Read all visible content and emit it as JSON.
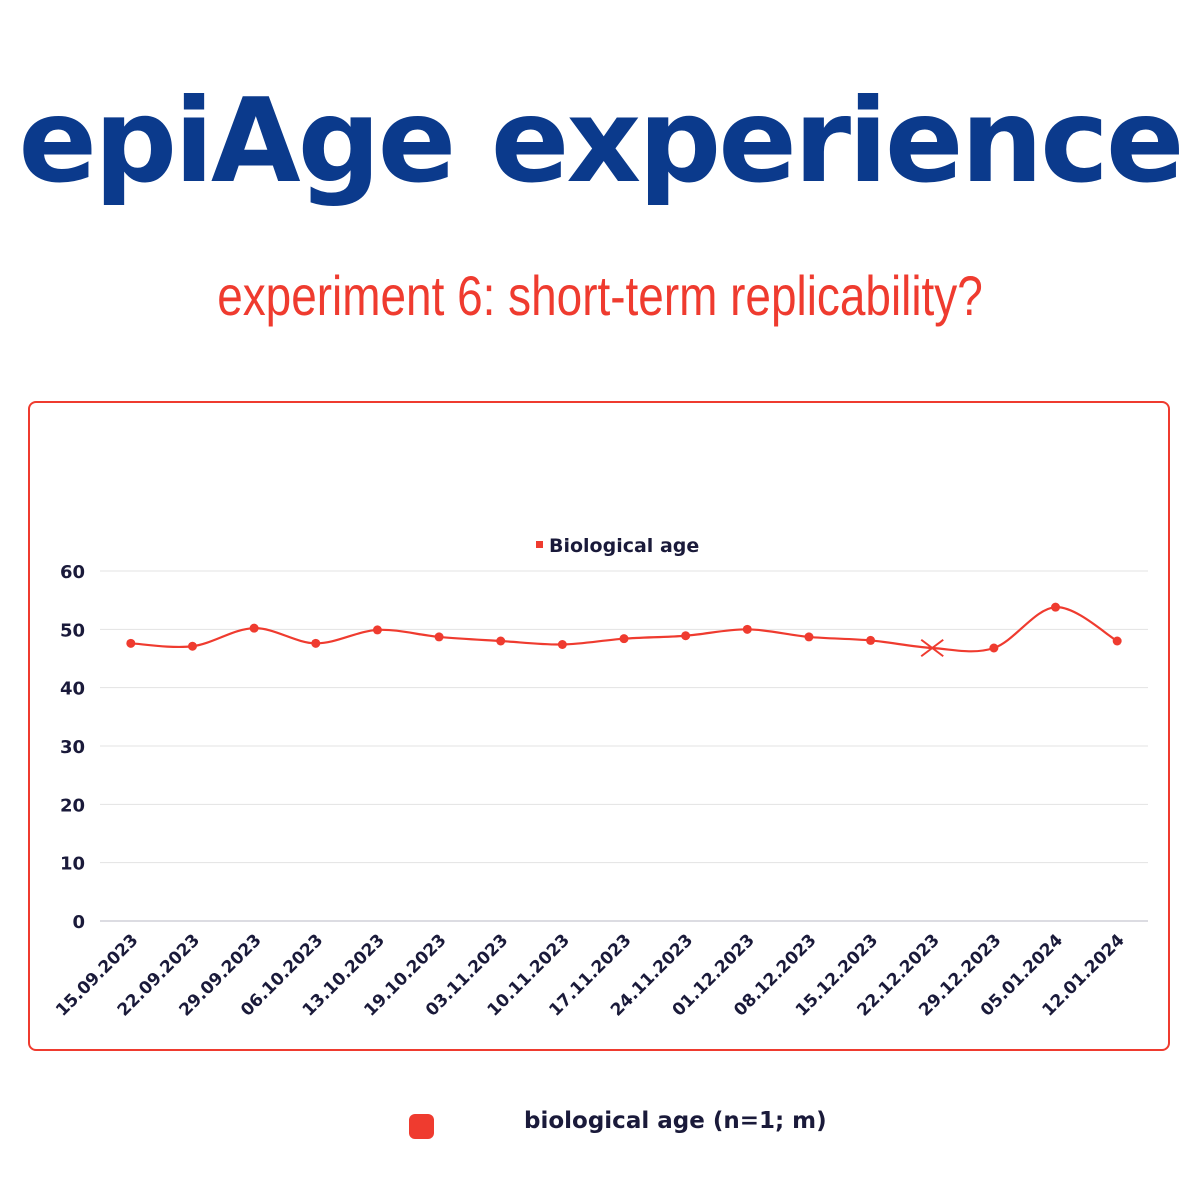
{
  "header": {
    "title": "epiAge experience",
    "subtitle": "experiment 6: short-term replicability?"
  },
  "colors": {
    "title": "#0b3a8c",
    "accent": "#ef3b2f",
    "text": "#1a1a3a",
    "grid": "#e3e3e3"
  },
  "chart_data": {
    "type": "line",
    "title": "",
    "xlabel": "",
    "ylabel": "",
    "ylim": [
      0,
      60
    ],
    "yticks": [
      0,
      10,
      20,
      30,
      40,
      50,
      60
    ],
    "grid": true,
    "legend_position": "top-center",
    "categories": [
      "15.09.2023",
      "22.09.2023",
      "29.09.2023",
      "06.10.2023",
      "13.10.2023",
      "19.10.2023",
      "03.11.2023",
      "10.11.2023",
      "17.11.2023",
      "24.11.2023",
      "01.12.2023",
      "08.12.2023",
      "15.12.2023",
      "22.12.2023",
      "29.12.2023",
      "05.01.2024",
      "12.01.2024"
    ],
    "series": [
      {
        "name": "Biological age",
        "color": "#ef3b2f",
        "values": [
          47.6,
          47.1,
          50.2,
          47.6,
          49.9,
          48.7,
          48.0,
          47.4,
          48.4,
          48.9,
          50.0,
          48.7,
          48.1,
          46.8,
          46.8,
          53.8,
          48.0
        ],
        "marker_styles": [
          "dot",
          "dot",
          "dot",
          "dot",
          "dot",
          "dot",
          "dot",
          "dot",
          "dot",
          "dot",
          "dot",
          "dot",
          "dot",
          "cross",
          "dot",
          "dot",
          "dot"
        ]
      }
    ]
  },
  "footer": {
    "legend_label": "biological age (n=1; m)"
  }
}
